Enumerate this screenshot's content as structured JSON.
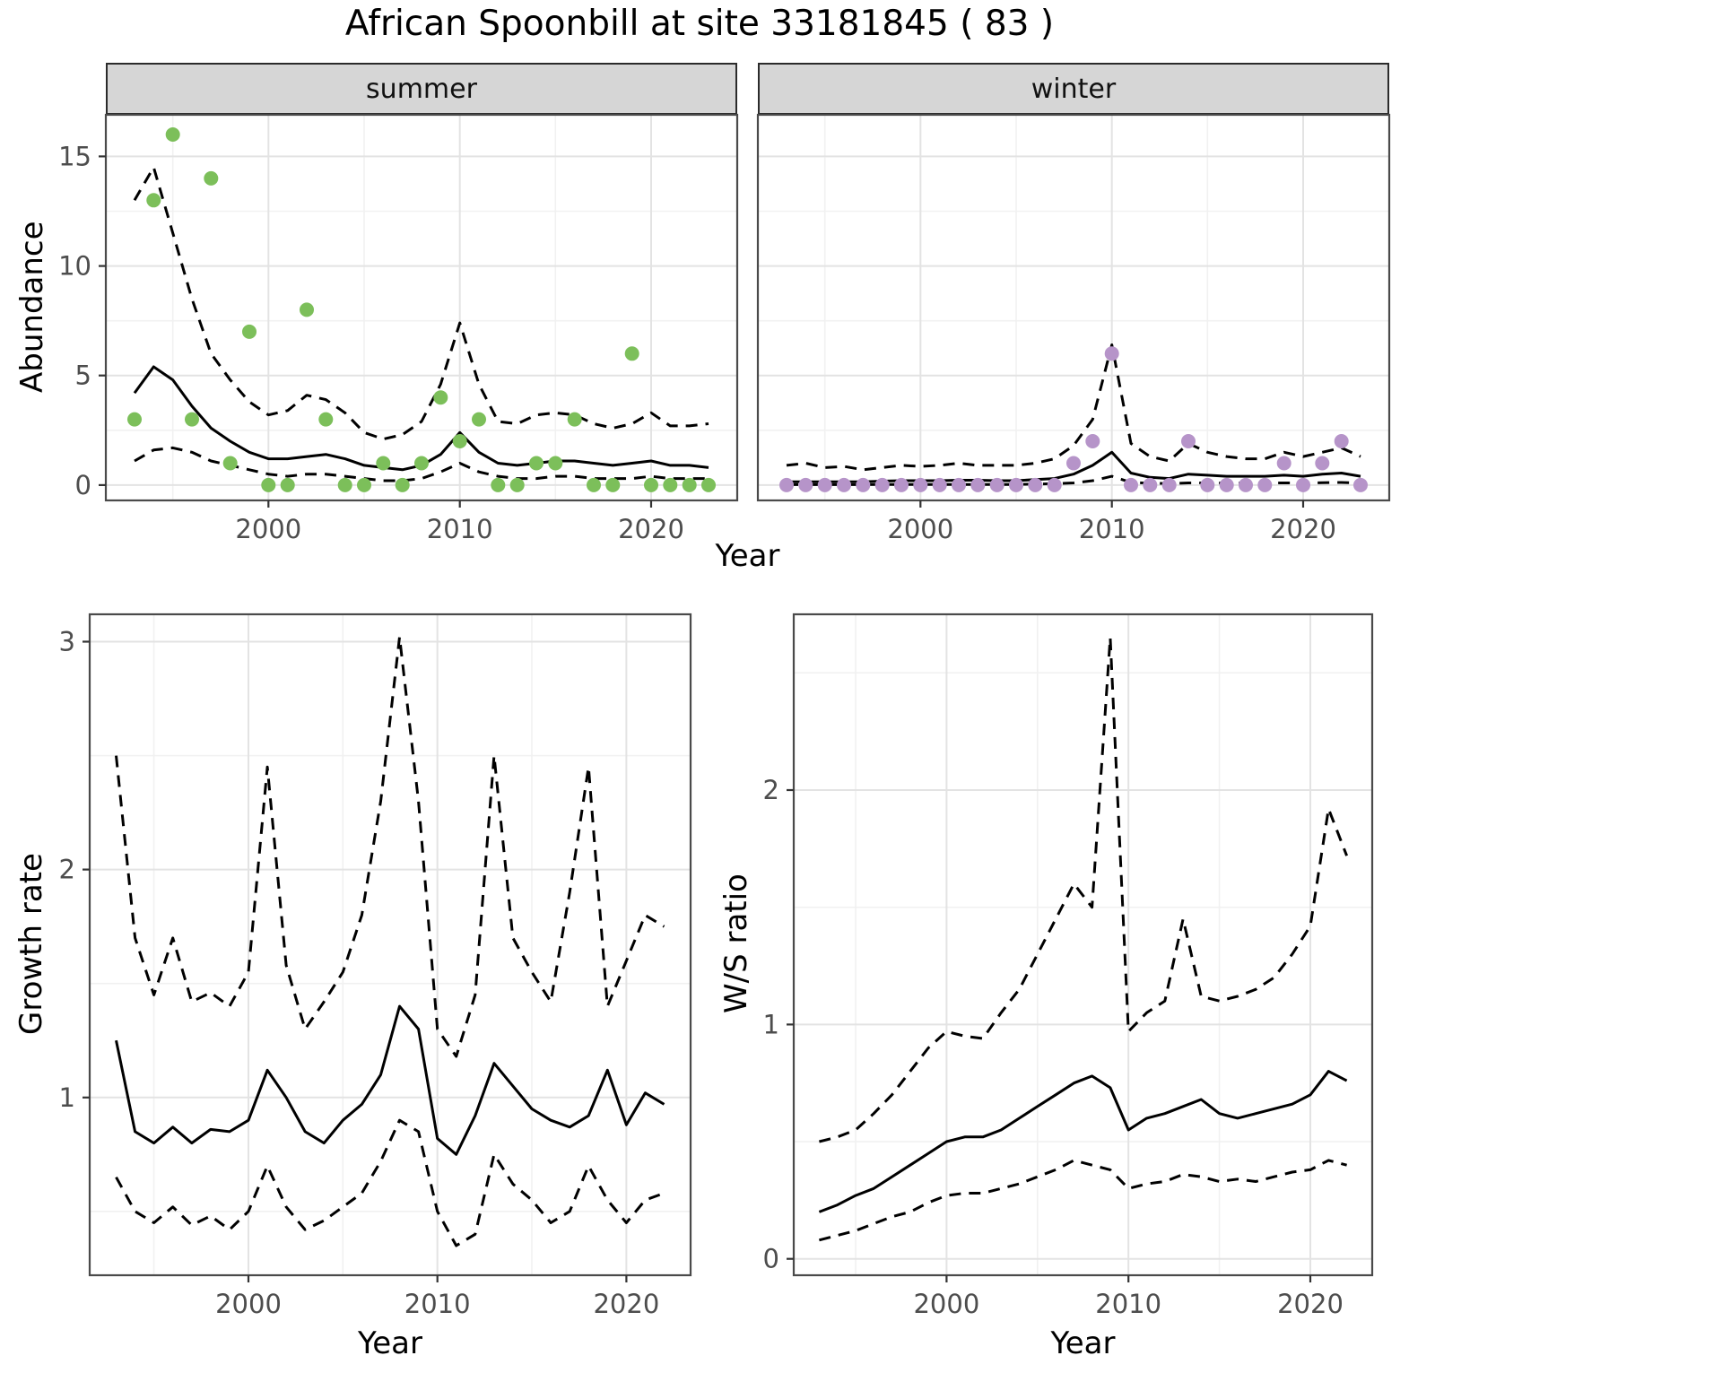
{
  "title": "African Spoonbill at site 33181845 ( 83 )",
  "top_row": {
    "ylabel": "Abundance",
    "xlabel": "Year",
    "facets": [
      {
        "label": "summer"
      },
      {
        "label": "winter"
      }
    ]
  },
  "bottom_left": {
    "ylabel": "Growth rate",
    "xlabel": "Year"
  },
  "bottom_right": {
    "ylabel": "W/S ratio",
    "xlabel": "Year"
  },
  "colors": {
    "summer_point": "#7cbf5a",
    "winter_point": "#b694c9",
    "fit_line": "#000000",
    "ci_line": "#000000",
    "grid_major": "#e3e3e3",
    "grid_minor": "#f1f1f1",
    "panel_border": "#4a4a4a",
    "strip_bg": "#d6d6d6"
  },
  "chart_data": [
    {
      "id": "abundance-summer",
      "type": "scatter",
      "facet": "summer",
      "ylabel": "Abundance",
      "xlabel": "Year",
      "point_color": "#7cbf5a",
      "x": [
        1993,
        1994,
        1995,
        1996,
        1997,
        1998,
        1999,
        2000,
        2001,
        2002,
        2003,
        2004,
        2005,
        2006,
        2007,
        2008,
        2009,
        2010,
        2011,
        2012,
        2013,
        2014,
        2015,
        2016,
        2017,
        2018,
        2019,
        2020,
        2021,
        2022,
        2023
      ],
      "observed": [
        3,
        13,
        16,
        3,
        14,
        1,
        7,
        0,
        0,
        8,
        3,
        0,
        0,
        1,
        0,
        1,
        4,
        2,
        3,
        0,
        0,
        1,
        1,
        3,
        0,
        0,
        6,
        0,
        0,
        0,
        0
      ],
      "fit": [
        4.2,
        5.4,
        4.8,
        3.6,
        2.6,
        2.0,
        1.5,
        1.2,
        1.2,
        1.3,
        1.4,
        1.2,
        0.9,
        0.8,
        0.7,
        0.9,
        1.4,
        2.4,
        1.5,
        1.0,
        0.9,
        1.0,
        1.1,
        1.1,
        1.0,
        0.9,
        1.0,
        1.1,
        0.9,
        0.9,
        0.8
      ],
      "upper_ci": [
        13.0,
        14.5,
        11.5,
        8.5,
        6.0,
        4.8,
        3.8,
        3.2,
        3.4,
        4.1,
        3.9,
        3.3,
        2.4,
        2.1,
        2.3,
        2.9,
        4.6,
        7.4,
        4.6,
        2.9,
        2.8,
        3.2,
        3.3,
        3.2,
        2.8,
        2.6,
        2.8,
        3.3,
        2.7,
        2.7,
        2.8
      ],
      "lower_ci": [
        1.1,
        1.6,
        1.7,
        1.5,
        1.1,
        0.9,
        0.7,
        0.5,
        0.4,
        0.5,
        0.5,
        0.4,
        0.3,
        0.2,
        0.2,
        0.3,
        0.6,
        1.0,
        0.6,
        0.4,
        0.3,
        0.3,
        0.4,
        0.4,
        0.3,
        0.3,
        0.3,
        0.4,
        0.3,
        0.3,
        0.3
      ],
      "xlim": [
        1991.5,
        2024.5
      ],
      "ylim": [
        -0.7,
        16.9
      ],
      "xticks": [
        2000,
        2010,
        2020
      ],
      "yticks": [
        0,
        5,
        10,
        15
      ],
      "xminor": [
        1995,
        2005,
        2015
      ],
      "yminor": [
        2.5,
        7.5,
        12.5
      ]
    },
    {
      "id": "abundance-winter",
      "type": "scatter",
      "facet": "winter",
      "ylabel": "Abundance",
      "xlabel": "Year",
      "point_color": "#b694c9",
      "x": [
        1993,
        1994,
        1995,
        1996,
        1997,
        1998,
        1999,
        2000,
        2001,
        2002,
        2003,
        2004,
        2005,
        2006,
        2007,
        2008,
        2009,
        2010,
        2011,
        2012,
        2013,
        2014,
        2015,
        2016,
        2017,
        2018,
        2019,
        2020,
        2021,
        2022,
        2023
      ],
      "observed": [
        0,
        0,
        0,
        0,
        0,
        0,
        0,
        0,
        0,
        0,
        0,
        0,
        0,
        0,
        0,
        1,
        2,
        6,
        0,
        0,
        0,
        2,
        0,
        0,
        0,
        0,
        1,
        0,
        1,
        2,
        0
      ],
      "fit": [
        0.15,
        0.15,
        0.15,
        0.15,
        0.15,
        0.18,
        0.2,
        0.2,
        0.2,
        0.22,
        0.22,
        0.2,
        0.2,
        0.25,
        0.3,
        0.5,
        0.9,
        1.5,
        0.55,
        0.35,
        0.3,
        0.5,
        0.45,
        0.4,
        0.4,
        0.4,
        0.45,
        0.4,
        0.5,
        0.55,
        0.4
      ],
      "upper_ci": [
        0.9,
        1.0,
        0.8,
        0.85,
        0.7,
        0.8,
        0.9,
        0.85,
        0.9,
        1.0,
        0.9,
        0.9,
        0.9,
        1.0,
        1.2,
        1.8,
        3.0,
        6.4,
        1.9,
        1.3,
        1.1,
        1.9,
        1.5,
        1.3,
        1.2,
        1.2,
        1.5,
        1.3,
        1.5,
        1.7,
        1.3
      ],
      "lower_ci": [
        0.02,
        0.02,
        0.02,
        0.02,
        0.02,
        0.03,
        0.03,
        0.03,
        0.03,
        0.03,
        0.03,
        0.03,
        0.03,
        0.05,
        0.06,
        0.1,
        0.2,
        0.4,
        0.12,
        0.08,
        0.07,
        0.1,
        0.1,
        0.09,
        0.09,
        0.09,
        0.1,
        0.09,
        0.11,
        0.12,
        0.09
      ],
      "xlim": [
        1991.5,
        2024.5
      ],
      "ylim": [
        -0.7,
        16.9
      ],
      "xticks": [
        2000,
        2010,
        2020
      ],
      "yticks": [
        0,
        5,
        10,
        15
      ],
      "xminor": [
        1995,
        2005,
        2015
      ],
      "yminor": [
        2.5,
        7.5,
        12.5
      ]
    },
    {
      "id": "growth-rate",
      "type": "line",
      "ylabel": "Growth rate",
      "xlabel": "Year",
      "x": [
        1993,
        1994,
        1995,
        1996,
        1997,
        1998,
        1999,
        2000,
        2001,
        2002,
        2003,
        2004,
        2005,
        2006,
        2007,
        2008,
        2009,
        2010,
        2011,
        2012,
        2013,
        2014,
        2015,
        2016,
        2017,
        2018,
        2019,
        2020,
        2021,
        2022
      ],
      "fit": [
        1.25,
        0.85,
        0.8,
        0.87,
        0.8,
        0.86,
        0.85,
        0.9,
        1.12,
        1.0,
        0.85,
        0.8,
        0.9,
        0.97,
        1.1,
        1.4,
        1.3,
        0.82,
        0.75,
        0.92,
        1.15,
        1.05,
        0.95,
        0.9,
        0.87,
        0.92,
        1.12,
        0.88,
        1.02,
        0.97
      ],
      "upper_ci": [
        2.5,
        1.7,
        1.45,
        1.7,
        1.42,
        1.46,
        1.4,
        1.55,
        2.45,
        1.58,
        1.3,
        1.42,
        1.55,
        1.8,
        2.3,
        3.02,
        2.3,
        1.3,
        1.18,
        1.45,
        2.5,
        1.7,
        1.55,
        1.42,
        1.9,
        2.45,
        1.4,
        1.6,
        1.8,
        1.75
      ],
      "lower_ci": [
        0.65,
        0.5,
        0.45,
        0.52,
        0.44,
        0.48,
        0.42,
        0.5,
        0.7,
        0.52,
        0.42,
        0.46,
        0.52,
        0.58,
        0.72,
        0.9,
        0.85,
        0.5,
        0.35,
        0.4,
        0.75,
        0.62,
        0.55,
        0.45,
        0.5,
        0.7,
        0.55,
        0.45,
        0.55,
        0.58
      ],
      "xlim": [
        1991.6,
        2023.4
      ],
      "ylim": [
        0.22,
        3.12
      ],
      "xticks": [
        2000,
        2010,
        2020
      ],
      "yticks": [
        1,
        2,
        3
      ],
      "xminor": [
        1995,
        2005,
        2015
      ],
      "yminor": [
        0.5,
        1.5,
        2.5
      ]
    },
    {
      "id": "ws-ratio",
      "type": "line",
      "ylabel": "W/S ratio",
      "xlabel": "Year",
      "x": [
        1993,
        1994,
        1995,
        1996,
        1997,
        1998,
        1999,
        2000,
        2001,
        2002,
        2003,
        2004,
        2005,
        2006,
        2007,
        2008,
        2009,
        2010,
        2011,
        2012,
        2013,
        2014,
        2015,
        2016,
        2017,
        2018,
        2019,
        2020,
        2021,
        2022
      ],
      "fit": [
        0.2,
        0.23,
        0.27,
        0.3,
        0.35,
        0.4,
        0.45,
        0.5,
        0.52,
        0.52,
        0.55,
        0.6,
        0.65,
        0.7,
        0.75,
        0.78,
        0.73,
        0.55,
        0.6,
        0.62,
        0.65,
        0.68,
        0.62,
        0.6,
        0.62,
        0.64,
        0.66,
        0.7,
        0.8,
        0.76
      ],
      "upper_ci": [
        0.5,
        0.52,
        0.55,
        0.62,
        0.7,
        0.8,
        0.9,
        0.97,
        0.95,
        0.94,
        1.05,
        1.15,
        1.3,
        1.45,
        1.6,
        1.5,
        2.65,
        0.97,
        1.05,
        1.1,
        1.45,
        1.12,
        1.1,
        1.12,
        1.15,
        1.2,
        1.3,
        1.42,
        1.92,
        1.72
      ],
      "lower_ci": [
        0.08,
        0.1,
        0.12,
        0.15,
        0.18,
        0.2,
        0.24,
        0.27,
        0.28,
        0.28,
        0.3,
        0.32,
        0.35,
        0.38,
        0.42,
        0.4,
        0.38,
        0.3,
        0.32,
        0.33,
        0.36,
        0.35,
        0.33,
        0.34,
        0.33,
        0.35,
        0.37,
        0.38,
        0.42,
        0.4
      ],
      "xlim": [
        1991.6,
        2023.4
      ],
      "ylim": [
        -0.07,
        2.75
      ],
      "xticks": [
        2000,
        2010,
        2020
      ],
      "yticks": [
        0,
        1,
        2
      ],
      "xminor": [
        1995,
        2005,
        2015
      ],
      "yminor": [
        0.5,
        1.5,
        2.5
      ]
    }
  ]
}
